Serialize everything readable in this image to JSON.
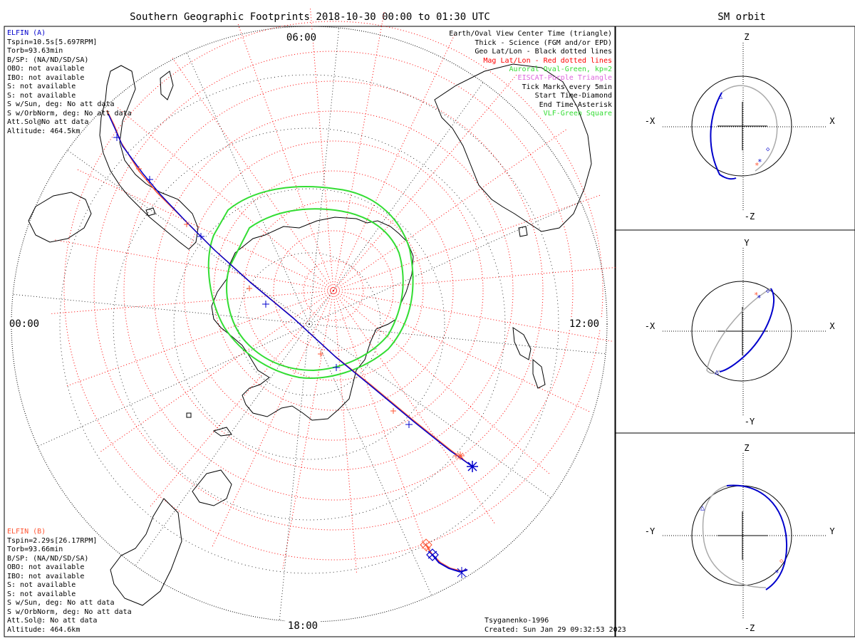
{
  "main_title": "Southern Geographic Footprints 2018-10-30 00:00 to 01:30 UTC",
  "side_title": "SM orbit",
  "time_labels": {
    "top": "06:00",
    "left": "00:00",
    "right": "12:00",
    "bottom": "18:00"
  },
  "elfin_a": {
    "title": "ELFIN (A)",
    "lines": [
      "Tspin=10.5s[5.697RPM]",
      "Torb=93.63min",
      "B/SP: (NA/ND/SD/SA)",
      "OBO: not available",
      "IBO: not available",
      "S: not available",
      "S: not available",
      "S w/Sun, deg: No att data",
      "S w/OrbNorm, deg: No att data",
      "Att.Sol@No att data",
      "Altitude: 464.5km"
    ]
  },
  "elfin_b": {
    "title": "ELFIN (B)",
    "lines": [
      "Tspin=2.29s[26.17RPM]",
      "Torb=93.66min",
      "B/SP: (NA/ND/SD/SA)",
      "OBO: not available",
      "IBO: not available",
      "S: not available",
      "S: not available",
      "S w/Sun, deg: No att data",
      "S w/OrbNorm, deg: No att data",
      "Att.Sol@: No att data",
      "Altitude: 464.6km"
    ]
  },
  "legend": [
    {
      "text": "Earth/Oval View Center Time (triangle)",
      "color": "#000000"
    },
    {
      "text": "Thick - Science (FGM and/or EPD)",
      "color": "#000000"
    },
    {
      "text": "Geo Lat/Lon - Black dotted lines",
      "color": "#000000"
    },
    {
      "text": "Mag Lat/Lon - Red dotted lines",
      "color": "#ff0000"
    },
    {
      "text": "Auroral Oval-Green, kp=2",
      "color": "#33dd33"
    },
    {
      "text": "EISCAT-Purple Triangle",
      "color": "#dd66dd"
    },
    {
      "text": "Tick Marks every 5min",
      "color": "#000000"
    },
    {
      "text": "Start Time-Diamond",
      "color": "#000000"
    },
    {
      "text": "End Time-Asterisk",
      "color": "#000000"
    },
    {
      "text": "VLF-Green Square",
      "color": "#33dd33"
    }
  ],
  "footer": {
    "model": "Tsyganenko-1996",
    "created": "Created: Sun Jan 29 09:32:53 2023"
  },
  "panels": [
    {
      "top": "Z",
      "bottom": "-Z",
      "left": "-X",
      "right": "X"
    },
    {
      "top": "Y",
      "bottom": "-Y",
      "left": "-X",
      "right": "X"
    },
    {
      "top": "Z",
      "bottom": "-Z",
      "left": "-Y",
      "right": "Y"
    }
  ],
  "colors": {
    "elfin_a": "#0000cc",
    "elfin_b": "#ff5533",
    "mag_grid": "#ff0000",
    "oval": "#33dd33",
    "orbit_back": "#aaaaaa"
  }
}
